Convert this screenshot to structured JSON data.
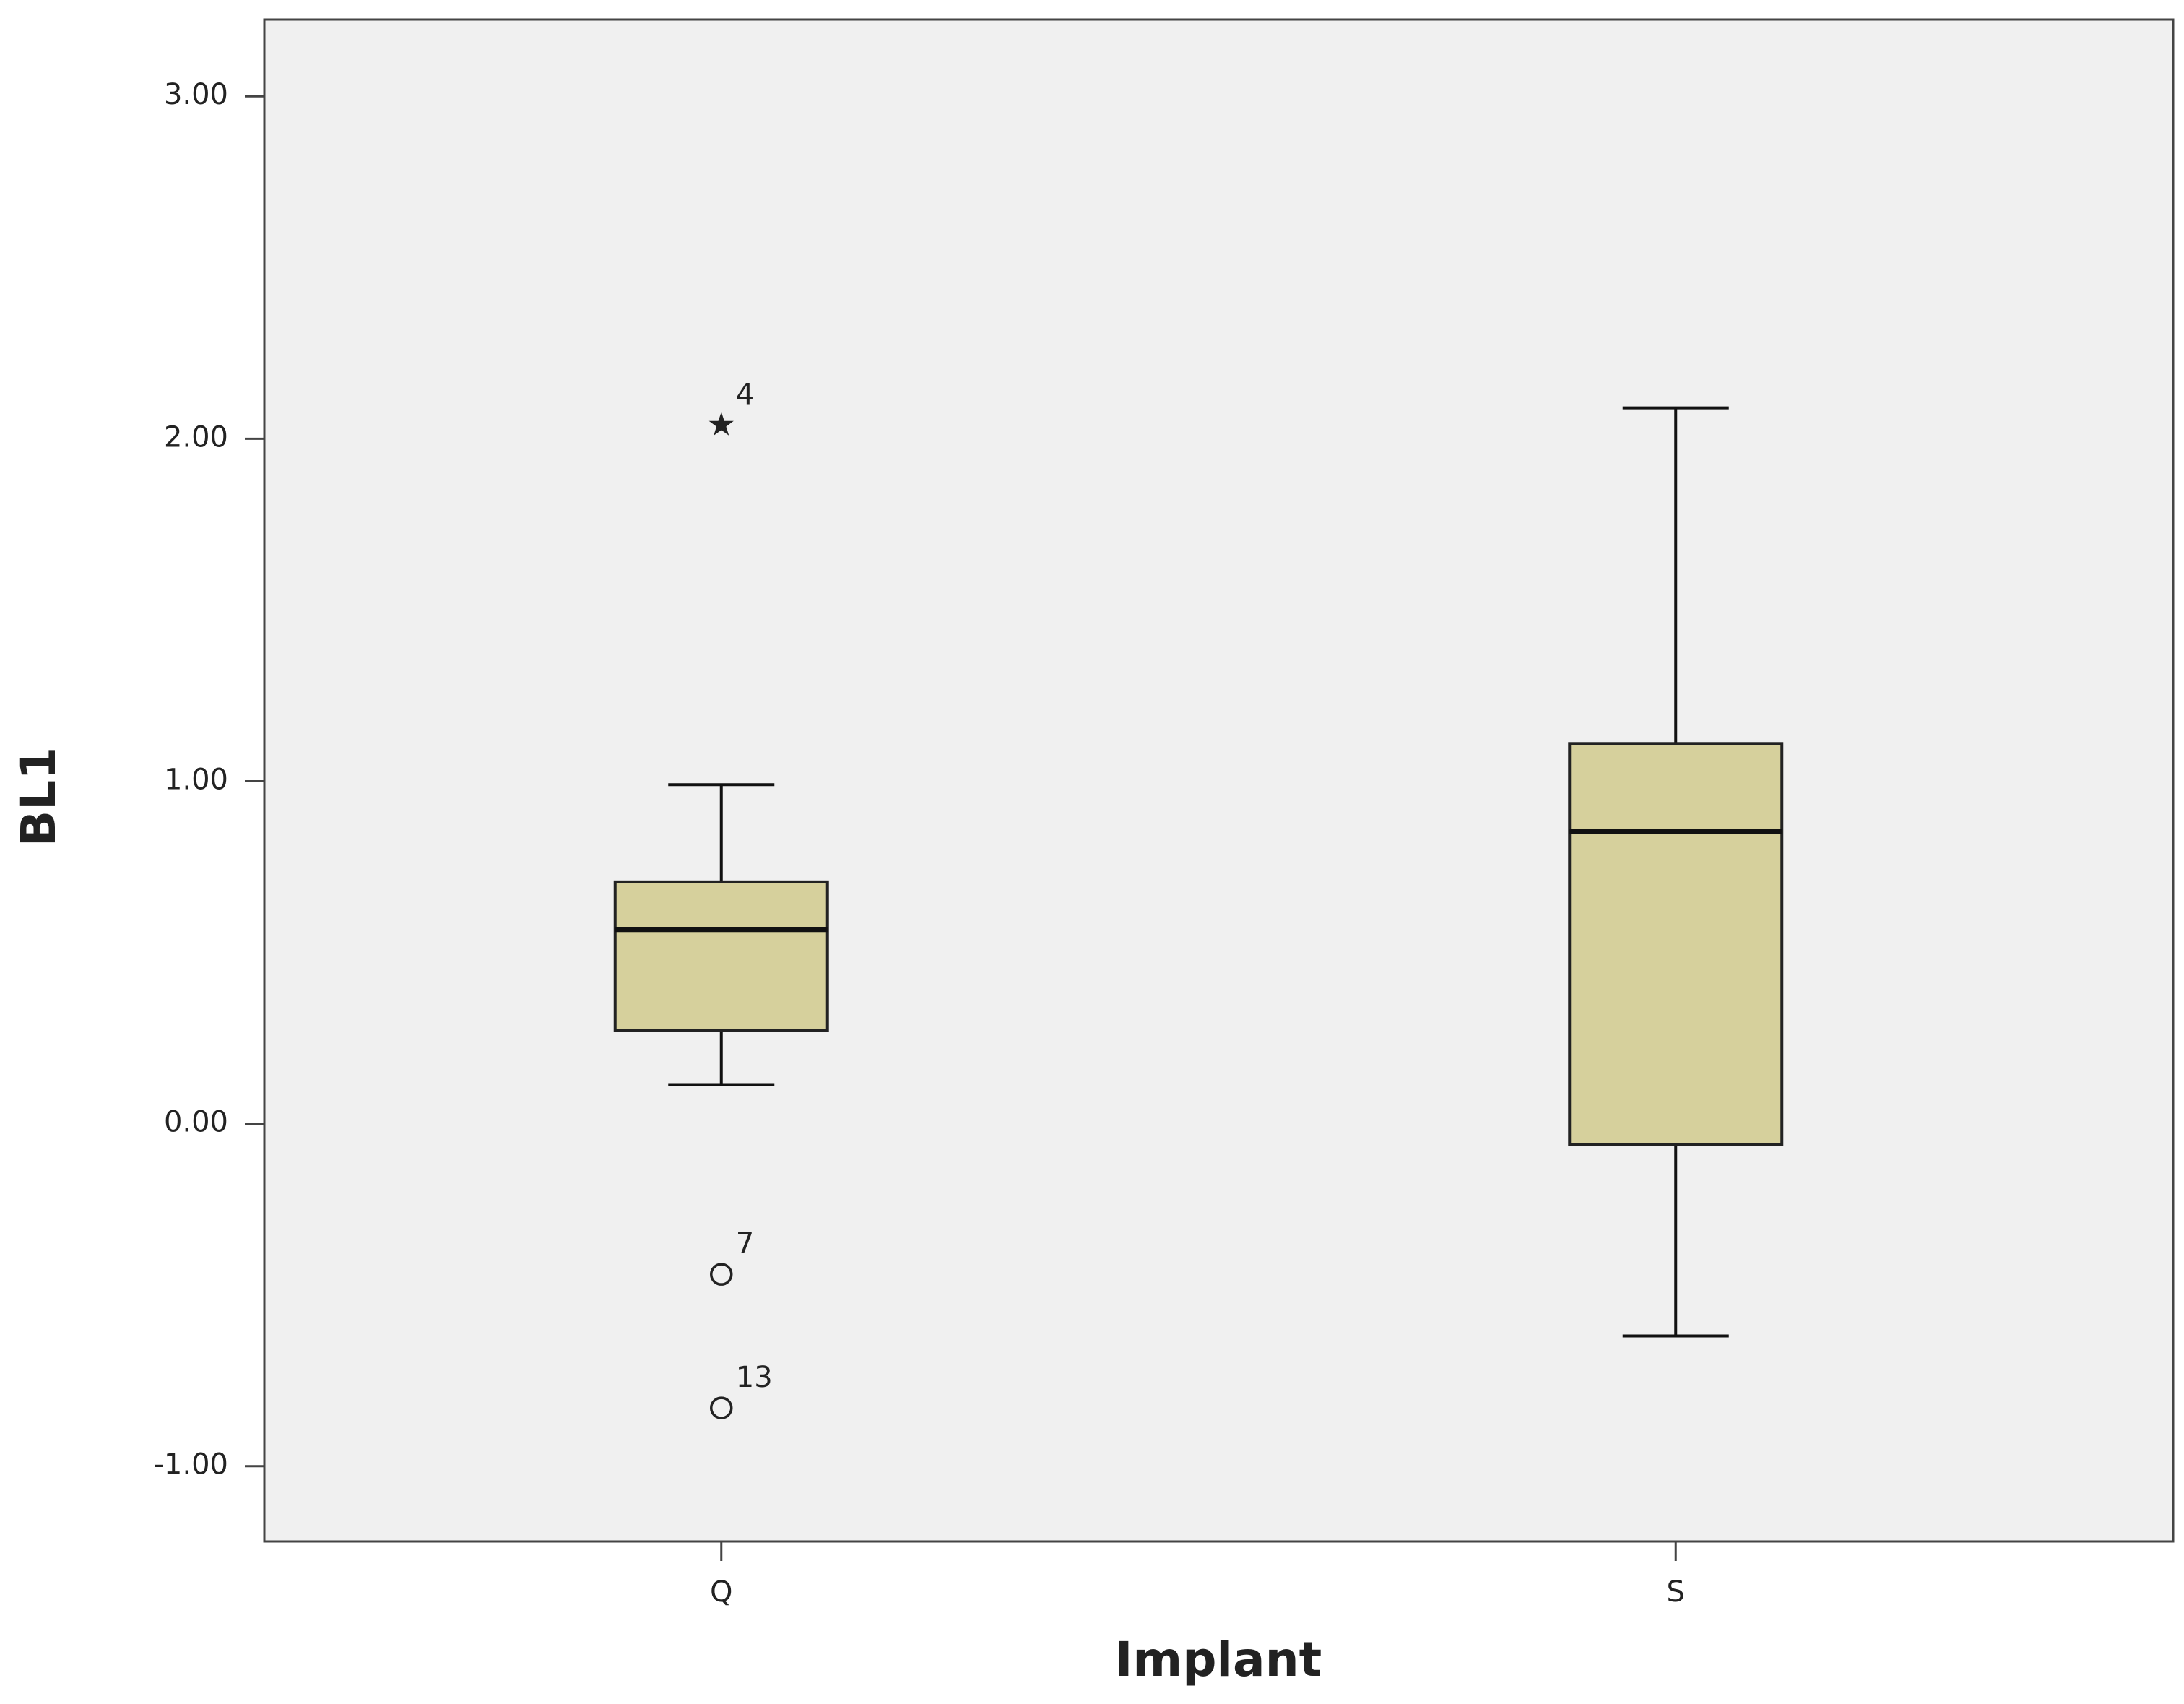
{
  "chart_data": {
    "type": "box",
    "x_label": "Implant",
    "y_label": "BL1",
    "categories": [
      "Q",
      "S"
    ],
    "ylim": [
      -1.22,
      3.224
    ],
    "yticks": [
      {
        "value": -1,
        "label": "-1.00"
      },
      {
        "value": 0,
        "label": "0.00"
      },
      {
        "value": 1,
        "label": "1.00"
      },
      {
        "value": 2,
        "label": "2.00"
      },
      {
        "value": 3,
        "label": "3.00"
      }
    ],
    "color": "#d6d09c",
    "background": "#f0f0f0",
    "boxes": [
      {
        "whislo": 0.114,
        "q1": 0.273,
        "med": 0.567,
        "q3": 0.706,
        "whishi": 0.99,
        "fliers": [
          {
            "value": 2.04,
            "label": "4",
            "marker": "star"
          },
          {
            "value": -0.44,
            "label": "7",
            "marker": "circle"
          },
          {
            "value": -0.83,
            "label": "13",
            "marker": "circle"
          }
        ]
      },
      {
        "whislo": -0.62,
        "q1": -0.06,
        "med": 0.853,
        "q3": 1.11,
        "whishi": 2.09,
        "fliers": []
      }
    ]
  }
}
